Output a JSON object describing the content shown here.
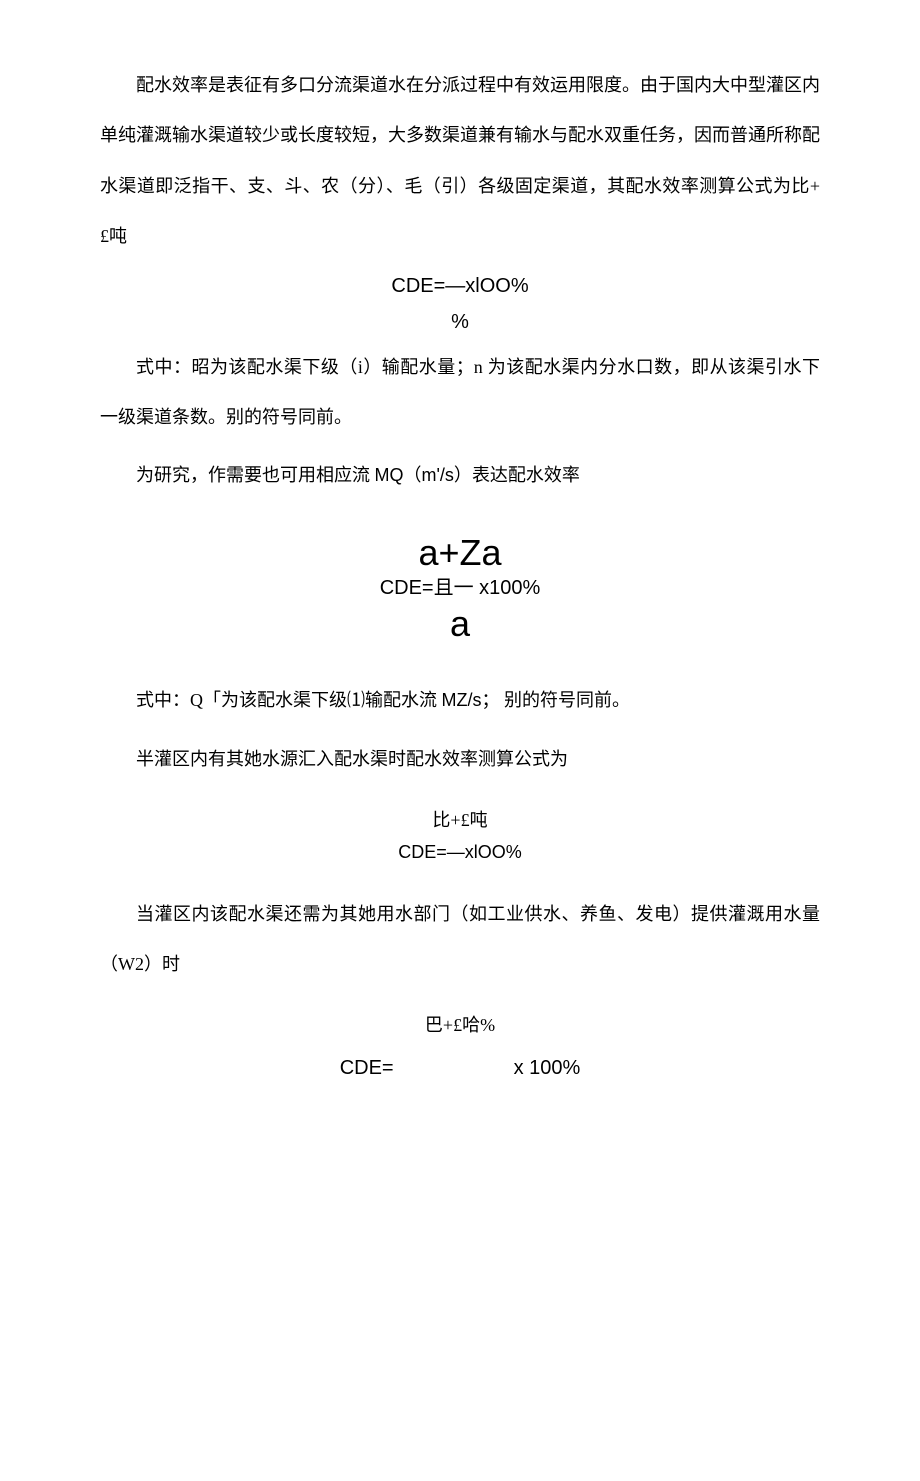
{
  "para1": "配水效率是表征有多口分流渠道水在分派过程中有效运用限度。由于国内大中型灌区内单纯灌溉输水渠道较少或长度较短，大多数渠道兼有输水与配水双重任务，因而普通所称配水渠道即泛指干、支、斗、农（分）、毛（引）各级固定渠道，其配水效率测算公式为比+£吨",
  "formula1_line1": "CDE=—xlOO%",
  "formula1_line2": "%",
  "para2": "式中：昭为该配水渠下级（i）输配水量；n 为该配水渠内分水口数，即从该渠引水下一级渠道条数。别的符号同前。",
  "para3_prefix": "为研究，作需要也可用相应流 ",
  "para3_mq": "MQ（m'/s）",
  "para3_suffix": "表达配水效率",
  "formula2_top": "a+Za",
  "formula2_mid": "CDE=且一 x100%",
  "formula2_bottom": "a",
  "para4_prefix": "式中：Q「为该配水渠下级⑴输配水流 ",
  "para4_mz": "MZ/s；",
  "para4_suffix": " 别的符号同前。",
  "para5": "半灌区内有其她水源汇入配水渠时配水效率测算公式为",
  "formula3_line1": "比+£吨",
  "formula3_line2": "CDE=—xlOO%",
  "para6": "当灌区内该配水渠还需为其她用水部门（如工业供水、养鱼、发电）提供灌溉用水量（W2）时",
  "formula4_top": "巴+£哈%",
  "formula4_left": "CDE=",
  "formula4_right": "x 100%"
}
